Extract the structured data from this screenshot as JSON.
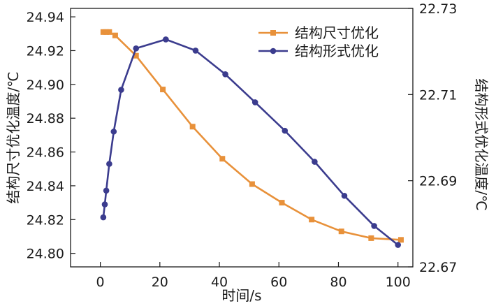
{
  "chart_data": {
    "type": "line",
    "title": "",
    "xlabel": "时间/s",
    "ylabel_left": "结构尺寸优化温度/℃",
    "ylabel_right": "结构形式优化温度/℃",
    "xlim": [
      -10,
      105
    ],
    "ylim_left": [
      24.792,
      24.945
    ],
    "ylim_right": [
      22.67,
      22.73
    ],
    "x_ticks": [
      0,
      20,
      40,
      60,
      80,
      100
    ],
    "x_tick_labels": [
      "0",
      "20",
      "40",
      "60",
      "80",
      "100"
    ],
    "y_left_ticks": [
      24.8,
      24.82,
      24.84,
      24.86,
      24.88,
      24.9,
      24.92,
      24.94
    ],
    "y_left_tick_labels": [
      "24.80",
      "24.82",
      "24.84",
      "24.86",
      "24.88",
      "24.90",
      "24.92",
      "24.94"
    ],
    "y_right_ticks": [
      22.67,
      22.69,
      22.71,
      22.73
    ],
    "y_right_tick_labels": [
      "22.67",
      "22.69",
      "22.71",
      "22.73"
    ],
    "legend_position": "top-right",
    "series": [
      {
        "name": "结构尺寸优化",
        "axis": "left",
        "color": "#E8913A",
        "marker": "square",
        "x": [
          1,
          2,
          3,
          5,
          12,
          21,
          31,
          41,
          51,
          61,
          71,
          81,
          91,
          101
        ],
        "y": [
          24.931,
          24.931,
          24.931,
          24.929,
          24.917,
          24.897,
          24.875,
          24.856,
          24.841,
          24.83,
          24.82,
          24.813,
          24.809,
          24.808
        ]
      },
      {
        "name": "结构形式优化",
        "axis": "right",
        "color": "#3B3C8E",
        "marker": "circle",
        "x": [
          1,
          1.5,
          2,
          3,
          4.5,
          7,
          12,
          22,
          32,
          42,
          52,
          62,
          72,
          82,
          92,
          100
        ],
        "y": [
          22.6815,
          22.6845,
          22.6877,
          22.6939,
          22.7014,
          22.7111,
          22.7207,
          22.7228,
          22.7202,
          22.7147,
          22.7082,
          22.7016,
          22.6944,
          22.6865,
          22.6795,
          22.6751
        ]
      }
    ]
  }
}
